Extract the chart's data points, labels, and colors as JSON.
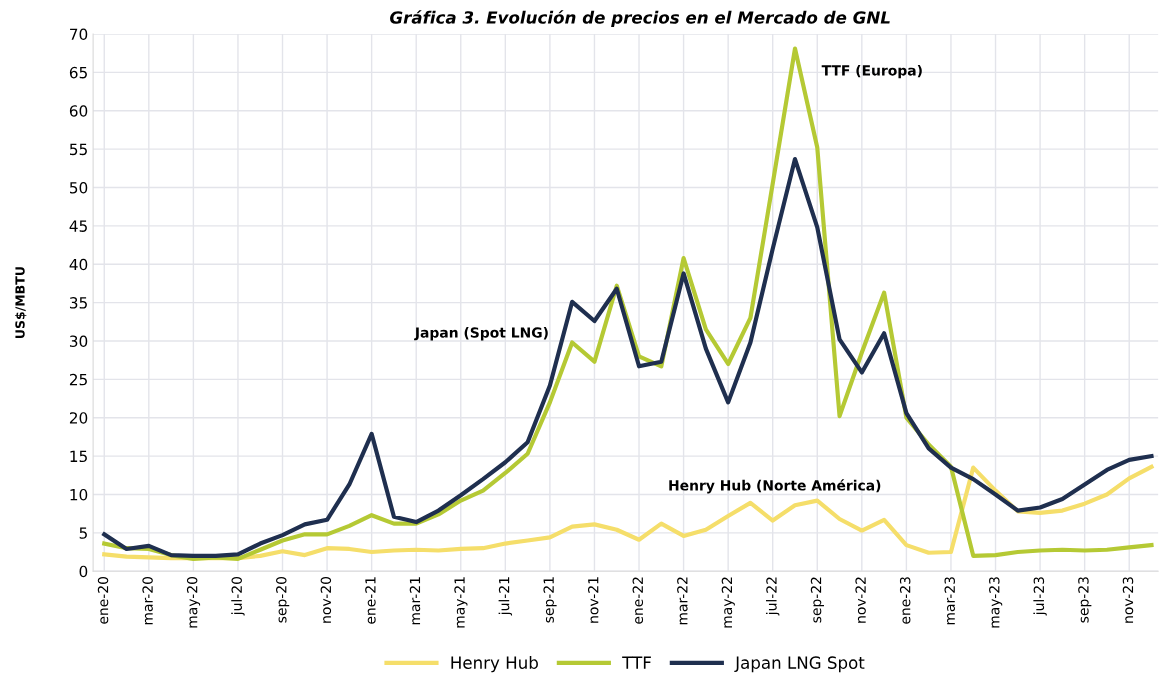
{
  "chart_data": {
    "type": "line",
    "title": "Gráfica 3. Evolución de precios en el Mercado de GNL",
    "ylabel": "US$/MBTU",
    "categories": [
      "ene-20",
      null,
      "mar-20",
      null,
      "may-20",
      null,
      "jul-20",
      null,
      "sep-20",
      null,
      "nov-20",
      null,
      "ene-21",
      null,
      "mar-21",
      null,
      "may-21",
      null,
      "jul-21",
      null,
      "sep-21",
      null,
      "nov-21",
      null,
      "ene-22",
      null,
      "mar-22",
      null,
      "may-22",
      null,
      "jul-22",
      null,
      "sep-22",
      null,
      "nov-22",
      null,
      "ene-23",
      null,
      "mar-23",
      null,
      "may-23",
      null,
      "jul-23",
      null,
      "sep-23",
      null,
      "nov-23",
      null
    ],
    "series": [
      {
        "name": "Henry Hub",
        "color": "#f5de6a",
        "values": [
          2.2,
          1.9,
          1.8,
          1.7,
          1.7,
          1.7,
          1.7,
          2.0,
          2.6,
          2.1,
          3.0,
          2.9,
          2.5,
          2.7,
          2.8,
          2.7,
          2.9,
          3.0,
          3.6,
          4.0,
          4.4,
          5.8,
          6.1,
          5.4,
          4.1,
          6.2,
          4.6,
          5.4,
          7.2,
          8.9,
          6.6,
          8.6,
          9.2,
          6.8,
          5.3,
          6.7,
          3.4,
          2.4,
          2.5,
          13.5,
          10.5,
          7.8,
          7.6,
          7.9,
          8.8,
          10.0,
          12.1,
          13.6
        ]
      },
      {
        "name": "TTF",
        "color": "#b5c934",
        "values": [
          3.6,
          3.0,
          2.9,
          2.1,
          1.6,
          1.8,
          1.6,
          2.8,
          4.0,
          4.8,
          4.8,
          5.9,
          7.3,
          6.2,
          6.2,
          7.4,
          9.2,
          10.5,
          12.8,
          15.3,
          22.0,
          29.8,
          27.3,
          37.2,
          28.0,
          26.7,
          40.8,
          31.5,
          27.0,
          33.0,
          50.5,
          68.1,
          55.2,
          20.2,
          28.5,
          36.3,
          20.0,
          16.5,
          13.6,
          2.0,
          2.1,
          2.5,
          2.7,
          2.8,
          2.7,
          2.8,
          3.1,
          3.4
        ]
      },
      {
        "name": "Japan LNG Spot",
        "color": "#1f2f4f",
        "values": [
          4.8,
          2.9,
          3.3,
          2.1,
          2.0,
          2.0,
          2.2,
          3.6,
          4.7,
          6.1,
          6.7,
          11.3,
          17.9,
          7.1,
          6.4,
          7.9,
          9.9,
          12.0,
          14.2,
          16.8,
          24.2,
          35.1,
          32.6,
          36.8,
          26.7,
          27.3,
          38.8,
          29.0,
          22.0,
          29.8,
          42.0,
          53.7,
          44.8,
          30.2,
          25.9,
          31.0,
          20.6,
          16.0,
          13.5,
          12.0,
          10.0,
          7.9,
          8.3,
          9.4,
          11.3,
          13.2,
          14.5,
          15.0
        ]
      }
    ],
    "annotations": [
      "TTF (Europa)",
      "Japan (Spot LNG)",
      "Henry Hub (Norte América)"
    ],
    "ylim": [
      0,
      70
    ],
    "yticks": [
      0,
      5,
      10,
      15,
      20,
      25,
      30,
      35,
      40,
      45,
      50,
      55,
      60,
      65,
      70
    ],
    "grid": true,
    "legend": "bottom",
    "marker": "none",
    "line_style": "solid"
  }
}
